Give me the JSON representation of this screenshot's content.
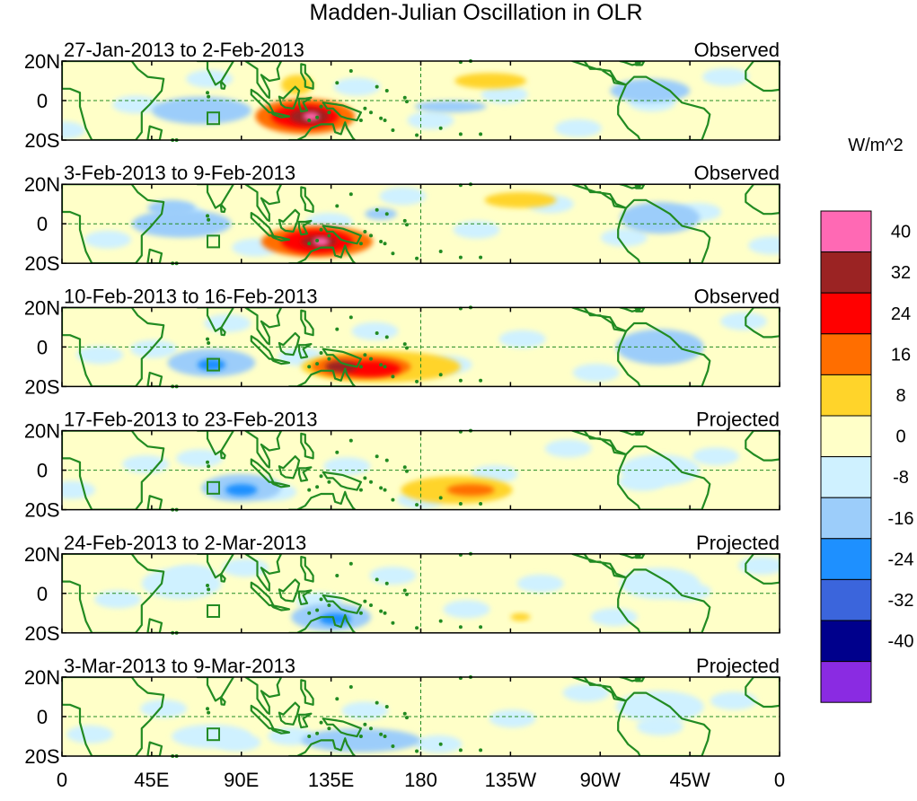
{
  "chart_data": {
    "type": "heatmap",
    "title": "Madden-Julian Oscillation in OLR",
    "colorbar_unit": "W/m^2",
    "colorbar_labels": [
      "40",
      "32",
      "24",
      "16",
      "8",
      "0",
      "-8",
      "-16",
      "-24",
      "-32",
      "-40"
    ],
    "colorbar_colors": [
      "#ff69b4",
      "#9b2323",
      "#ff0000",
      "#ff6e00",
      "#ffd42a",
      "#ffffc8",
      "#cff1ff",
      "#9ccdfa",
      "#1e90ff",
      "#3b65dc",
      "#00008c",
      "#8a2be2"
    ],
    "x_ticks": [
      "0",
      "45E",
      "90E",
      "135E",
      "180",
      "135W",
      "90W",
      "45W",
      "0"
    ],
    "y_ticks": [
      "20N",
      "0",
      "20S"
    ],
    "panels": [
      {
        "period": "27-Jan-2013 to 2-Feb-2013",
        "status": "Observed",
        "anomalies": [
          {
            "lon": 122,
            "lat": -8,
            "rx": 25,
            "ry": 9,
            "value": 18
          },
          {
            "lon": 122,
            "lat": -8,
            "rx": 17,
            "ry": 6,
            "value": 27
          },
          {
            "lon": 124,
            "lat": -8,
            "rx": 10,
            "ry": 4,
            "value": 35
          },
          {
            "lon": 125,
            "lat": -8,
            "rx": 4,
            "ry": 2,
            "value": 42
          },
          {
            "lon": 118,
            "lat": 8,
            "rx": 8,
            "ry": 5,
            "value": 15
          },
          {
            "lon": 215,
            "lat": 10,
            "rx": 18,
            "ry": 4,
            "value": 10
          },
          {
            "lon": 70,
            "lat": -5,
            "rx": 25,
            "ry": 7,
            "value": -10
          },
          {
            "lon": 195,
            "lat": -3,
            "rx": 18,
            "ry": 3,
            "value": -12
          },
          {
            "lon": 295,
            "lat": 5,
            "rx": 20,
            "ry": 6,
            "value": -9
          }
        ]
      },
      {
        "period": "3-Feb-2013 to 9-Feb-2013",
        "status": "Observed",
        "anomalies": [
          {
            "lon": 128,
            "lat": -9,
            "rx": 28,
            "ry": 8,
            "value": 18
          },
          {
            "lon": 128,
            "lat": -9,
            "rx": 18,
            "ry": 6,
            "value": 27
          },
          {
            "lon": 129,
            "lat": -9,
            "rx": 9,
            "ry": 3,
            "value": 35
          },
          {
            "lon": 130,
            "lat": -9,
            "rx": 4,
            "ry": 2,
            "value": 42
          },
          {
            "lon": 230,
            "lat": 12,
            "rx": 18,
            "ry": 4,
            "value": 10
          },
          {
            "lon": 60,
            "lat": 0,
            "rx": 25,
            "ry": 7,
            "value": -10
          },
          {
            "lon": 55,
            "lat": 8,
            "rx": 12,
            "ry": 4,
            "value": -10
          },
          {
            "lon": 160,
            "lat": 5,
            "rx": 8,
            "ry": 3,
            "value": -10
          },
          {
            "lon": 300,
            "lat": 3,
            "rx": 20,
            "ry": 8,
            "value": -9
          }
        ]
      },
      {
        "period": "10-Feb-2013 to 16-Feb-2013",
        "status": "Observed",
        "anomalies": [
          {
            "lon": 160,
            "lat": -10,
            "rx": 40,
            "ry": 8,
            "value": 12
          },
          {
            "lon": 150,
            "lat": -10,
            "rx": 25,
            "ry": 6,
            "value": 18
          },
          {
            "lon": 155,
            "lat": -11,
            "rx": 15,
            "ry": 4,
            "value": 26
          },
          {
            "lon": 140,
            "lat": -10,
            "rx": 8,
            "ry": 3,
            "value": 33
          },
          {
            "lon": 75,
            "lat": -8,
            "rx": 22,
            "ry": 7,
            "value": -10
          },
          {
            "lon": 75,
            "lat": -9,
            "rx": 7,
            "ry": 3,
            "value": -18
          },
          {
            "lon": 300,
            "lat": 0,
            "rx": 22,
            "ry": 9,
            "value": -9
          }
        ]
      },
      {
        "period": "17-Feb-2013 to 23-Feb-2013",
        "status": "Projected",
        "anomalies": [
          {
            "lon": 198,
            "lat": -10,
            "rx": 28,
            "ry": 7,
            "value": 12
          },
          {
            "lon": 205,
            "lat": -10,
            "rx": 12,
            "ry": 3,
            "value": 18
          },
          {
            "lon": 90,
            "lat": -9,
            "rx": 20,
            "ry": 7,
            "value": -12
          },
          {
            "lon": 90,
            "lat": -10,
            "rx": 8,
            "ry": 3,
            "value": -20
          },
          {
            "lon": 300,
            "lat": 0,
            "rx": 20,
            "ry": 8,
            "value": -6
          }
        ]
      },
      {
        "period": "24-Feb-2013 to 2-Mar-2013",
        "status": "Projected",
        "anomalies": [
          {
            "lon": 135,
            "lat": -12,
            "rx": 20,
            "ry": 7,
            "value": -12
          },
          {
            "lon": 137,
            "lat": -13,
            "rx": 8,
            "ry": 3,
            "value": -20
          },
          {
            "lon": 230,
            "lat": -12,
            "rx": 5,
            "ry": 2,
            "value": 12
          },
          {
            "lon": 60,
            "lat": 5,
            "rx": 20,
            "ry": 8,
            "value": -6
          },
          {
            "lon": 300,
            "lat": 5,
            "rx": 20,
            "ry": 8,
            "value": -6
          }
        ]
      },
      {
        "period": "3-Mar-2013 to 9-Mar-2013",
        "status": "Projected",
        "anomalies": [
          {
            "lon": 150,
            "lat": -12,
            "rx": 30,
            "ry": 6,
            "value": -10
          },
          {
            "lon": 75,
            "lat": -10,
            "rx": 20,
            "ry": 6,
            "value": -6
          },
          {
            "lon": 300,
            "lat": 5,
            "rx": 22,
            "ry": 8,
            "value": -6
          }
        ]
      }
    ]
  }
}
